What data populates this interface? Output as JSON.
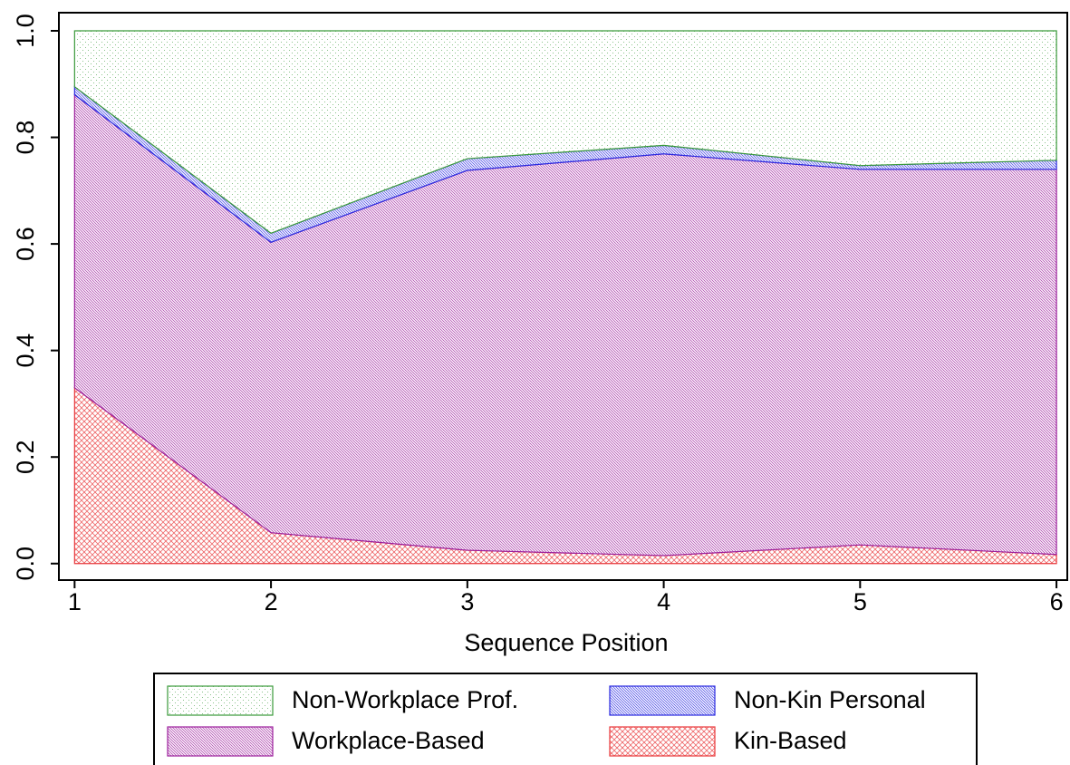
{
  "chart_data": {
    "type": "stacked_area",
    "x_label": "Sequence Position",
    "x": [
      1,
      2,
      3,
      4,
      5,
      6
    ],
    "series": [
      {
        "name": "Kin-Based",
        "color": "#e8383b",
        "pattern": "crosshatch",
        "values": [
          0.33,
          0.058,
          0.025,
          0.015,
          0.035,
          0.017
        ]
      },
      {
        "name": "Workplace-Based",
        "color": "#9c1f9c",
        "pattern": "hatch",
        "values": [
          0.55,
          0.545,
          0.713,
          0.754,
          0.705,
          0.723
        ]
      },
      {
        "name": "Non-Kin Personal",
        "color": "#2a2ae0",
        "pattern": "hatch",
        "values": [
          0.015,
          0.017,
          0.022,
          0.016,
          0.007,
          0.017
        ]
      },
      {
        "name": "Non-Workplace Prof.",
        "color": "#3a9a3a",
        "pattern": "dots",
        "values": [
          0.105,
          0.38,
          0.24,
          0.215,
          0.253,
          0.243
        ]
      }
    ],
    "xlim": [
      0.92,
      6.055
    ],
    "xticks": [
      1,
      2,
      3,
      4,
      5,
      6
    ],
    "ylim": [
      -0.031,
      1.034
    ],
    "yticks": [
      {
        "value": 0,
        "label": "0.0"
      },
      0.2,
      0.4,
      0.6,
      0.8,
      {
        "value": 1,
        "label": "1.0"
      }
    ],
    "legend": "bottom"
  }
}
